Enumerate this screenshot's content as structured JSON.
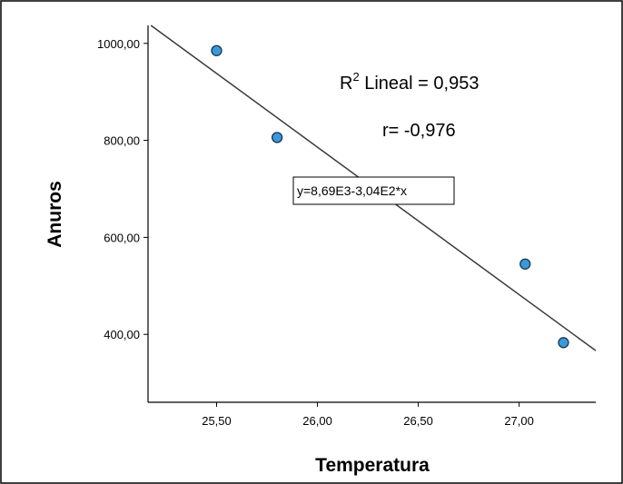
{
  "chart_data": {
    "type": "scatter",
    "xlabel": "Temperatura",
    "ylabel": "Anuros",
    "xlim": [
      25.16,
      27.38
    ],
    "ylim": [
      260,
      1037
    ],
    "xticks": [
      25.5,
      26.0,
      26.5,
      27.0
    ],
    "xtick_labels": [
      "25,50",
      "26,00",
      "26,50",
      "27,00"
    ],
    "yticks": [
      400,
      600,
      800,
      1000
    ],
    "ytick_labels": [
      "400,00",
      "600,00",
      "800,00",
      "1000,00"
    ],
    "points": [
      {
        "x": 25.5,
        "y": 985
      },
      {
        "x": 25.8,
        "y": 806
      },
      {
        "x": 27.03,
        "y": 545
      },
      {
        "x": 27.22,
        "y": 383
      }
    ],
    "fit_line": {
      "intercept": 8690,
      "slope": -304,
      "label": "y=8,69E3-3,04E2*x"
    },
    "r2_text": {
      "prefix": "R",
      "sup": "2",
      "suffix": " Lineal = 0,953"
    },
    "r_text": "r= -0,976",
    "grid": false,
    "colors": {
      "point_fill": "#3a9ad9",
      "point_stroke": "#1a3550",
      "line": "#3a3a3a",
      "frame": "#000000"
    }
  }
}
